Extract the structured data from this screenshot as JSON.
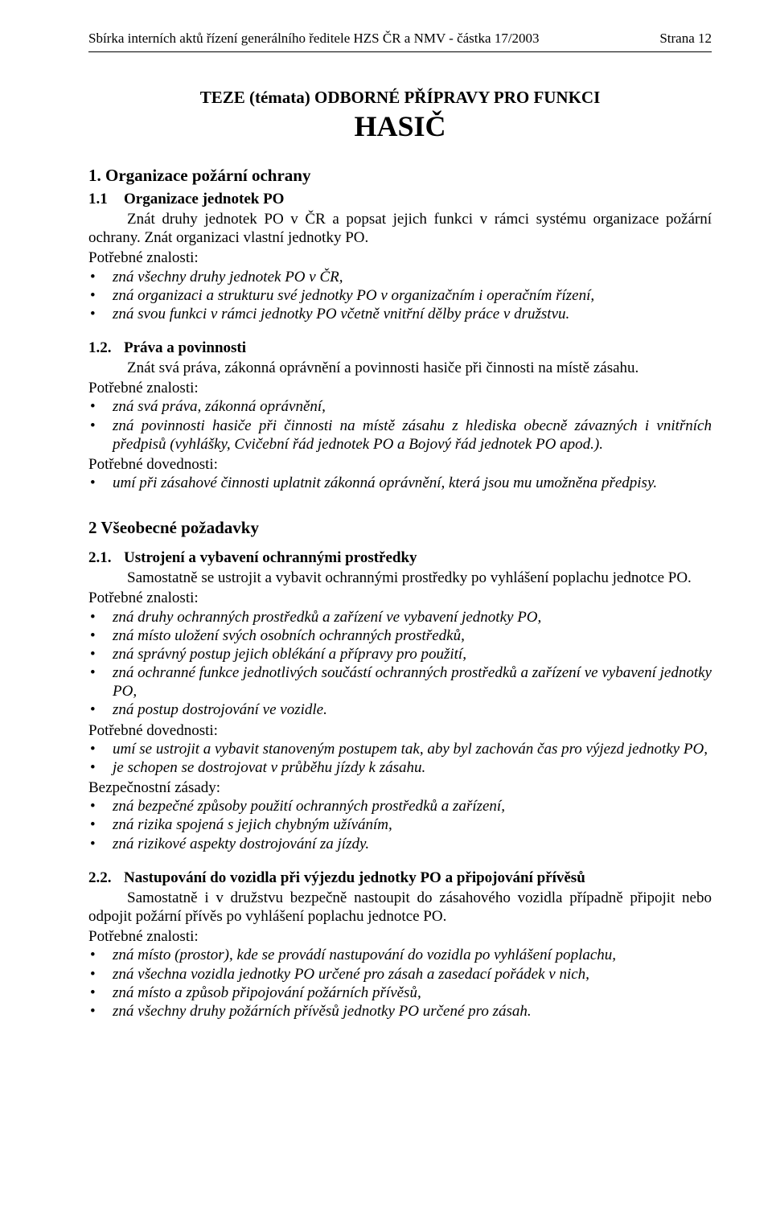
{
  "header": {
    "left": "Sbírka interních aktů řízení generálního ředitele HZS ČR a NMV  -  částka 17/2003",
    "right": "Strana   12"
  },
  "title": {
    "line1": "TEZE (témata) ODBORNÉ  PŘÍPRAVY  PRO  FUNKCI",
    "line2": "HASIČ"
  },
  "s1": {
    "heading": "1.  Organizace požární ochrany",
    "s11": {
      "num": "1.1",
      "title": "Organizace jednotek PO",
      "body": "Znát druhy jednotek PO v ČR a popsat jejich funkci v rámci systému organizace požární ochrany. Znát organizaci vlastní jednotky PO.",
      "pz_label": "Potřebné znalosti:",
      "pz": [
        "zná všechny druhy jednotek PO  v ČR,",
        "zná organizaci a strukturu své jednotky PO v organizačním i operačním řízení,",
        "zná svou funkci v rámci jednotky PO včetně vnitřní dělby práce v družstvu."
      ]
    },
    "s12": {
      "num": "1.2.",
      "title": "Práva a povinnosti",
      "body": "Znát svá práva, zákonná oprávnění a povinnosti hasiče při činnosti na místě zásahu.",
      "pz_label": "Potřebné znalosti:",
      "pz": [
        "zná svá práva, zákonná oprávnění,",
        "zná povinnosti hasiče při činnosti na místě zásahu z hlediska obecně závazných i vnitřních předpisů (vyhlášky, Cvičební řád jednotek PO a Bojový řád jednotek PO apod.)."
      ],
      "pd_label": "Potřebné dovednosti:",
      "pd": [
        "umí při zásahové činnosti uplatnit zákonná oprávnění, která jsou mu umožněna předpisy."
      ]
    }
  },
  "s2": {
    "heading": "2   Všeobecné požadavky",
    "s21": {
      "num": "2.1.",
      "title": "Ustrojení a vybavení ochrannými prostředky",
      "body": "Samostatně se ustrojit a vybavit ochrannými prostředky po vyhlášení poplachu jednotce PO.",
      "pz_label": "Potřebné znalosti:",
      "pz": [
        "zná druhy ochranných prostředků a zařízení ve vybavení jednotky PO,",
        "zná místo uložení svých osobních ochranných prostředků,",
        "zná správný postup jejich oblékání a přípravy pro použití,",
        "zná ochranné funkce jednotlivých součástí ochranných prostředků a zařízení ve vybavení jednotky PO,",
        "zná postup dostrojování ve vozidle."
      ],
      "pd_label": "Potřebné dovednosti:",
      "pd": [
        "umí se ustrojit a vybavit stanoveným postupem tak, aby byl zachován čas pro výjezd jednotky PO,",
        "je schopen se dostrojovat v průběhu jízdy k zásahu."
      ],
      "bz_label": "Bezpečnostní zásady:",
      "bz": [
        "zná bezpečné způsoby použití ochranných prostředků a zařízení,",
        "zná rizika spojená s jejich chybným užíváním,",
        "zná rizikové aspekty dostrojování za jízdy."
      ]
    },
    "s22": {
      "num": "2.2.",
      "title": "Nastupování do vozidla při výjezdu jednotky PO a připojování přívěsů",
      "body": "Samostatně i v družstvu bezpečně nastoupit do zásahového vozidla případně připojit nebo odpojit požární přívěs po vyhlášení poplachu jednotce PO.",
      "pz_label": "Potřebné znalosti:",
      "pz": [
        "zná místo (prostor), kde se provádí nastupování do vozidla po vyhlášení poplachu,",
        "zná všechna vozidla jednotky PO určené pro zásah a zasedací pořádek v nich,",
        "zná místo a způsob připojování požárních přívěsů,",
        "zná všechny druhy požárních přívěsů jednotky PO určené pro zásah."
      ]
    }
  }
}
